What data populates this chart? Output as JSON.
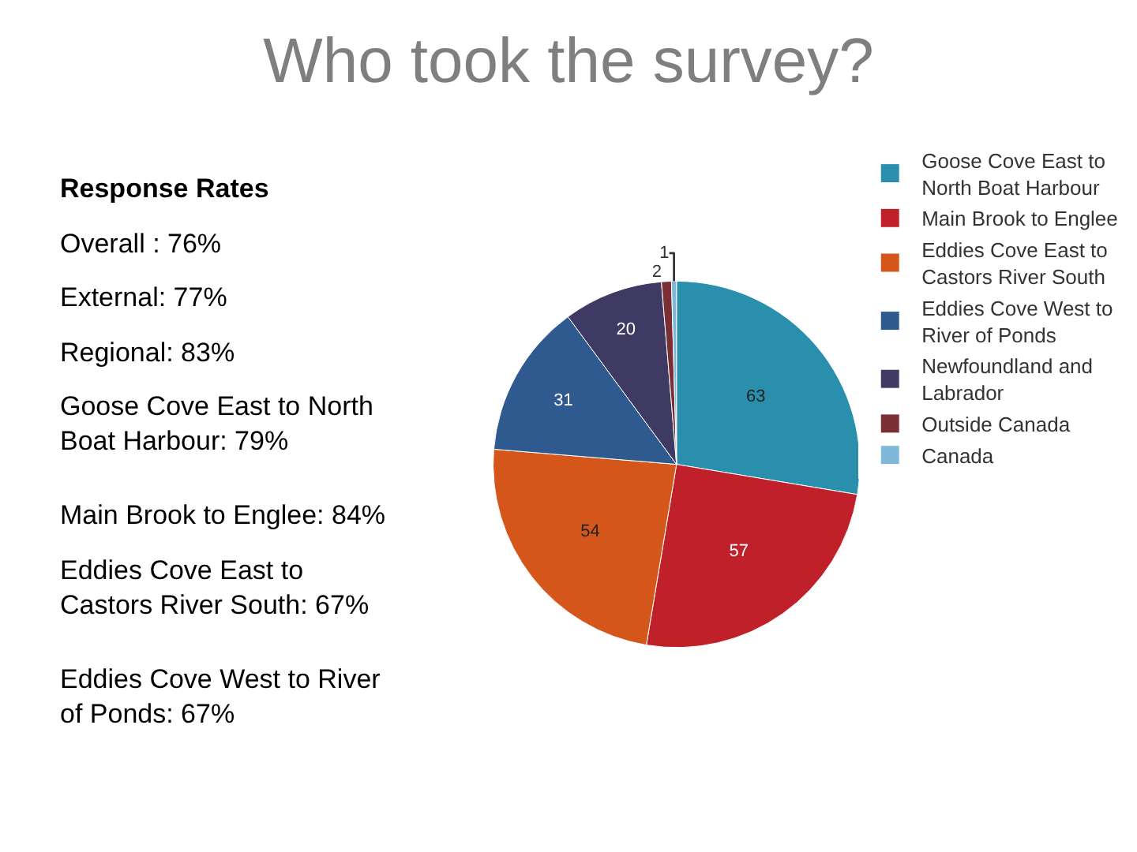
{
  "chart_data": {
    "type": "pie",
    "title": "Who took the survey?",
    "categories": [
      "Goose Cove East to North Boat Harbour",
      "Main Brook to Englee",
      "Eddies Cove East to Castors River South",
      "Eddies Cove West to River of Ponds",
      "Newfoundland and Labrador",
      "Outside Canada",
      "Canada"
    ],
    "values": [
      63,
      57,
      54,
      31,
      20,
      2,
      1
    ],
    "colors": [
      "#2a8fad",
      "#c0202a",
      "#d4561a",
      "#2e5a8f",
      "#3e3a64",
      "#7a2f35",
      "#7fb8d8"
    ],
    "data_labels": true,
    "legend": "right",
    "annotations": [
      "Response Rates",
      "Overall : 76%",
      "External: 77%",
      "Regional: 83%",
      "Goose Cove East to North Boat Harbour: 79%",
      "Main Brook to Englee: 84%",
      "Eddies Cove East to Castors River South: 67%",
      "Eddies Cove West to River of Ponds: 67%"
    ]
  }
}
